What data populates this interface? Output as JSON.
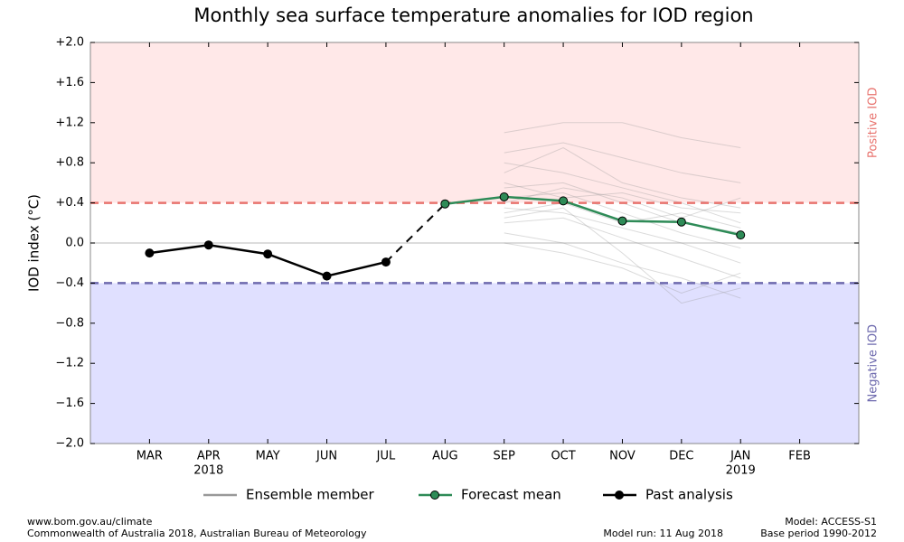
{
  "chart_data": {
    "type": "line",
    "title": "Monthly sea surface temperature anomalies for IOD region",
    "y_label": "IOD index (°C)",
    "categories": [
      "MAR",
      "APR",
      "MAY",
      "JUN",
      "JUL",
      "AUG",
      "SEP",
      "OCT",
      "NOV",
      "DEC",
      "JAN",
      "FEB"
    ],
    "category_sublabels": [
      null,
      "2018",
      null,
      null,
      null,
      null,
      null,
      null,
      null,
      null,
      "2019",
      null
    ],
    "ylim": [
      -2.0,
      2.0
    ],
    "yticks": [
      {
        "value": 2.0,
        "label": "+2.0"
      },
      {
        "value": 1.6,
        "label": "+1.6"
      },
      {
        "value": 1.2,
        "label": "+1.2"
      },
      {
        "value": 0.8,
        "label": "+0.8"
      },
      {
        "value": 0.4,
        "label": "+0.4"
      },
      {
        "value": 0.0,
        "label": "0.0"
      },
      {
        "value": -0.4,
        "label": "−0.4"
      },
      {
        "value": -0.8,
        "label": "−0.8"
      },
      {
        "value": -1.2,
        "label": "−1.2"
      },
      {
        "value": -1.6,
        "label": "−1.6"
      },
      {
        "value": -2.0,
        "label": "−2.0"
      }
    ],
    "zero_line": 0,
    "thresholds": [
      {
        "value": 0.4,
        "label": "Positive IOD",
        "color": "#e8736e",
        "fill": "#ffe8e8",
        "side": "above"
      },
      {
        "value": -0.4,
        "label": "Negative IOD",
        "color": "#6e6aae",
        "fill": "#e0e0ff",
        "side": "below"
      }
    ],
    "ensemble": {
      "name": "Ensemble member",
      "color": "#999999",
      "members": [
        [
          null,
          null,
          null,
          null,
          null,
          null,
          0.9,
          1.0,
          0.85,
          0.7,
          0.6,
          null
        ],
        [
          null,
          null,
          null,
          null,
          null,
          null,
          0.7,
          0.95,
          0.6,
          0.45,
          0.35,
          null
        ],
        [
          null,
          null,
          null,
          null,
          null,
          null,
          0.55,
          0.6,
          0.4,
          0.2,
          0.1,
          null
        ],
        [
          null,
          null,
          null,
          null,
          null,
          null,
          0.45,
          0.5,
          0.3,
          0.1,
          -0.05,
          null
        ],
        [
          null,
          null,
          null,
          null,
          null,
          null,
          0.35,
          0.3,
          0.15,
          0.0,
          -0.2,
          null
        ],
        [
          null,
          null,
          null,
          null,
          null,
          null,
          0.2,
          0.25,
          0.05,
          -0.15,
          -0.35,
          null
        ],
        [
          null,
          null,
          null,
          null,
          null,
          null,
          0.1,
          0.0,
          -0.2,
          -0.35,
          -0.55,
          null
        ],
        [
          null,
          null,
          null,
          null,
          null,
          null,
          0.6,
          0.45,
          0.5,
          0.35,
          0.3,
          null
        ],
        [
          null,
          null,
          null,
          null,
          null,
          null,
          0.3,
          0.4,
          0.2,
          0.3,
          0.15,
          null
        ],
        [
          null,
          null,
          null,
          null,
          null,
          null,
          1.1,
          1.2,
          1.2,
          1.05,
          0.95,
          null
        ],
        [
          null,
          null,
          null,
          null,
          null,
          null,
          0.0,
          -0.1,
          -0.25,
          -0.5,
          -0.3,
          null
        ],
        [
          null,
          null,
          null,
          null,
          null,
          null,
          0.8,
          0.7,
          0.55,
          0.4,
          0.2,
          null
        ],
        [
          null,
          null,
          null,
          null,
          null,
          null,
          0.4,
          0.55,
          0.45,
          0.25,
          0.45,
          null
        ],
        [
          null,
          null,
          null,
          null,
          null,
          null,
          0.25,
          0.35,
          -0.1,
          -0.6,
          -0.45,
          null
        ]
      ]
    },
    "series": [
      {
        "name": "Forecast mean",
        "color": "#2e8b57",
        "marker": true,
        "values": [
          null,
          null,
          null,
          null,
          null,
          0.39,
          0.46,
          0.42,
          0.22,
          0.21,
          0.08,
          null
        ]
      },
      {
        "name": "Past analysis",
        "color": "#000000",
        "marker": true,
        "values": [
          -0.1,
          -0.02,
          -0.11,
          -0.33,
          -0.19,
          null,
          null,
          null,
          null,
          null,
          null,
          null
        ]
      }
    ],
    "footer": {
      "left": [
        "www.bom.gov.au/climate",
        "Commonwealth of Australia 2018, Australian Bureau of Meteorology"
      ],
      "middle": "Model run: 11 Aug 2018",
      "right": [
        "Model: ACCESS-S1",
        "Base period 1990-2012"
      ]
    }
  }
}
